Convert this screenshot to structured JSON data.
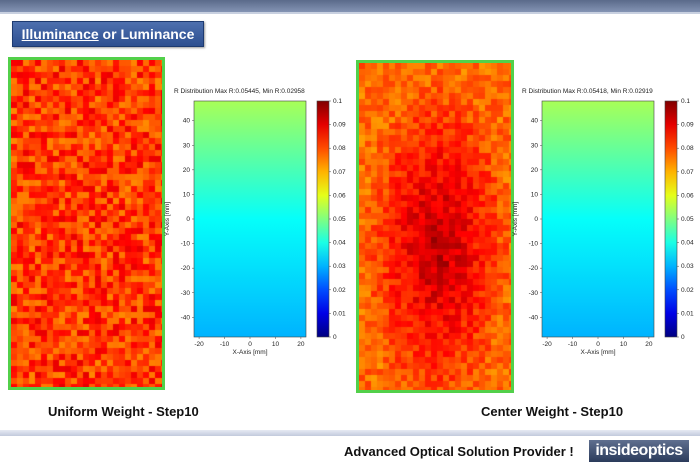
{
  "slide": {
    "title_part1": "Illuminance",
    "title_part2": " or Luminance",
    "caption_left": "Uniform Weight - Step10",
    "caption_right": "Center Weight - Step10",
    "footer_slogan": "Advanced Optical Solution Provider !",
    "logo_text": "insideoptics",
    "colors": {
      "green_frame": "#52d04a",
      "title_bg": "#3a5c9e"
    }
  },
  "chart_data": [
    {
      "type": "heatmap",
      "title": "R Distribution  Max R:0.05445, Min R:0.02958",
      "xlabel": "X-Axis [mm]",
      "ylabel": "Y-Axis [mm]",
      "xlim": [
        -22,
        22
      ],
      "ylim": [
        -48,
        48
      ],
      "xticks": [
        "-20",
        "-10",
        "0",
        "10",
        "20"
      ],
      "yticks": [
        "40",
        "30",
        "20",
        "10",
        "0",
        "-10",
        "-20",
        "-30",
        "-40"
      ],
      "colorbar_range": [
        0,
        0.1
      ],
      "colorbar_ticks": [
        "0.1",
        "0.09",
        "0.08",
        "0.07",
        "0.06",
        "0.05",
        "0.04",
        "0.03",
        "0.02",
        "0.01",
        "0"
      ],
      "max_r": 0.05445,
      "min_r": 0.02958
    },
    {
      "type": "heatmap",
      "title": "R Distribution  Max R:0.05418, Min R:0.02919",
      "xlabel": "X-Axis [mm]",
      "ylabel": "Y-Axis [mm]",
      "xlim": [
        -22,
        22
      ],
      "ylim": [
        -48,
        48
      ],
      "xticks": [
        "-20",
        "-10",
        "0",
        "10",
        "20"
      ],
      "yticks": [
        "40",
        "30",
        "20",
        "10",
        "0",
        "-10",
        "-20",
        "-30",
        "-40"
      ],
      "colorbar_range": [
        0,
        0.1
      ],
      "colorbar_ticks": [
        "0.1",
        "0.09",
        "0.08",
        "0.07",
        "0.06",
        "0.05",
        "0.04",
        "0.03",
        "0.02",
        "0.01",
        "0"
      ],
      "max_r": 0.05418,
      "min_r": 0.02919
    }
  ]
}
